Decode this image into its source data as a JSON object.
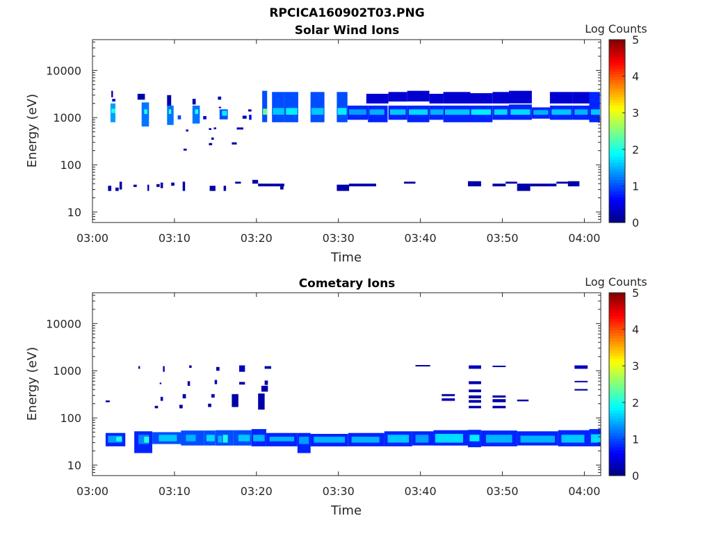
{
  "figure_title": "RPCICA160902T03.PNG",
  "colors": {
    "background": "#ffffff",
    "axis": "#262626",
    "colormap": "jet",
    "panel_low": "#000080",
    "panel_high": "#800000"
  },
  "chart_data": [
    {
      "type": "heatmap",
      "title": "Solar Wind Ions",
      "xlabel": "Time",
      "ylabel": "Energy (eV)",
      "x_ticks": [
        "03:00",
        "03:10",
        "03:20",
        "03:30",
        "03:40",
        "03:50",
        "04:00"
      ],
      "x_range_minutes": [
        0,
        62
      ],
      "y_scale": "log",
      "y_ticks": [
        "10",
        "100",
        "1000",
        "10000"
      ],
      "y_range": [
        6,
        45000
      ],
      "colorbar": {
        "label": "Log Counts",
        "range": [
          0,
          5
        ],
        "ticks": [
          "0",
          "1",
          "2",
          "3",
          "4",
          "5"
        ]
      },
      "cells": [
        [
          2.3,
          2.5,
          2700,
          3700,
          0.2
        ],
        [
          2.4,
          2.8,
          2200,
          2500,
          0.3
        ],
        [
          2.2,
          2.8,
          800,
          2000,
          1.4
        ],
        [
          2.3,
          2.8,
          1250,
          1550,
          2.0
        ],
        [
          5.5,
          6.4,
          2400,
          3200,
          0.2
        ],
        [
          6.0,
          6.9,
          650,
          2100,
          1.2
        ],
        [
          6.3,
          6.7,
          1200,
          1500,
          2.0
        ],
        [
          9.1,
          9.6,
          1700,
          3000,
          0.2
        ],
        [
          9.1,
          9.9,
          700,
          1800,
          1.2
        ],
        [
          9.3,
          9.6,
          1200,
          1500,
          2.2
        ],
        [
          10.4,
          10.8,
          920,
          1120,
          1.0
        ],
        [
          11.4,
          11.7,
          510,
          560,
          0.2
        ],
        [
          11.1,
          11.5,
          200,
          220,
          0.2
        ],
        [
          12.2,
          12.6,
          1900,
          2500,
          0.2
        ],
        [
          12.2,
          13.1,
          750,
          1800,
          1.2
        ],
        [
          12.5,
          12.9,
          1200,
          1500,
          2.0
        ],
        [
          13.5,
          13.9,
          920,
          1080,
          0.4
        ],
        [
          14.2,
          14.5,
          550,
          600,
          0.2
        ],
        [
          14.5,
          14.8,
          340,
          380,
          0.2
        ],
        [
          14.2,
          14.6,
          260,
          290,
          0.2
        ],
        [
          14.8,
          15.1,
          570,
          620,
          0.2
        ],
        [
          15.3,
          15.7,
          2400,
          2800,
          0.2
        ],
        [
          15.4,
          15.7,
          1600,
          1700,
          0.2
        ],
        [
          15.5,
          16.5,
          920,
          1500,
          1.0
        ],
        [
          15.8,
          16.4,
          1100,
          1400,
          1.8
        ],
        [
          17.0,
          17.6,
          270,
          300,
          0.2
        ],
        [
          17.6,
          18.4,
          560,
          620,
          0.2
        ],
        [
          18.3,
          18.8,
          950,
          1100,
          0.2
        ],
        [
          19.0,
          19.4,
          1350,
          1500,
          0.2
        ],
        [
          19.1,
          19.4,
          900,
          1150,
          0.6
        ],
        [
          20.7,
          21.3,
          800,
          3700,
          1.0
        ],
        [
          20.8,
          21.3,
          1150,
          1550,
          2.4
        ],
        [
          21.9,
          23.4,
          800,
          3500,
          1.0
        ],
        [
          22.0,
          23.4,
          1150,
          1600,
          1.6
        ],
        [
          23.4,
          25.1,
          800,
          3500,
          1.0
        ],
        [
          23.6,
          25.0,
          1150,
          1600,
          1.8
        ],
        [
          26.6,
          28.3,
          800,
          3500,
          1.0
        ],
        [
          26.7,
          28.2,
          1150,
          1600,
          1.6
        ],
        [
          29.8,
          31.1,
          800,
          3500,
          1.0
        ],
        [
          29.9,
          31.0,
          1150,
          1600,
          1.8
        ],
        [
          31.1,
          33.6,
          900,
          1800,
          0.8
        ],
        [
          31.3,
          33.4,
          1150,
          1500,
          1.4
        ],
        [
          33.4,
          36.1,
          2000,
          3200,
          0.4
        ],
        [
          33.6,
          36.0,
          800,
          1800,
          0.8
        ],
        [
          33.8,
          35.6,
          1150,
          1500,
          1.5
        ],
        [
          36.1,
          38.4,
          2200,
          3500,
          0.4
        ],
        [
          36.1,
          38.4,
          900,
          1800,
          0.8
        ],
        [
          36.3,
          38.2,
          1150,
          1500,
          1.6
        ],
        [
          38.4,
          41.1,
          2200,
          3700,
          0.4
        ],
        [
          38.4,
          41.1,
          800,
          1800,
          0.8
        ],
        [
          38.6,
          40.9,
          1150,
          1500,
          1.7
        ],
        [
          41.1,
          42.8,
          2000,
          3200,
          0.4
        ],
        [
          41.1,
          42.8,
          900,
          1800,
          0.8
        ],
        [
          41.2,
          42.8,
          1150,
          1500,
          1.5
        ],
        [
          42.8,
          46.1,
          2000,
          3500,
          0.4
        ],
        [
          42.8,
          46.1,
          800,
          1800,
          0.8
        ],
        [
          43.0,
          46.0,
          1150,
          1500,
          1.6
        ],
        [
          46.1,
          48.8,
          2000,
          3300,
          0.4
        ],
        [
          46.1,
          48.8,
          800,
          1800,
          0.8
        ],
        [
          46.2,
          48.6,
          1150,
          1500,
          1.8
        ],
        [
          48.8,
          50.8,
          2000,
          3500,
          0.4
        ],
        [
          48.8,
          50.8,
          900,
          1800,
          0.8
        ],
        [
          49.0,
          50.6,
          1150,
          1500,
          1.7
        ],
        [
          50.8,
          53.6,
          2000,
          3700,
          0.4
        ],
        [
          50.8,
          53.6,
          900,
          1900,
          0.8
        ],
        [
          51.0,
          53.4,
          1150,
          1500,
          1.7
        ],
        [
          53.6,
          55.8,
          950,
          1650,
          0.8
        ],
        [
          53.8,
          55.6,
          1150,
          1450,
          1.5
        ],
        [
          55.8,
          58.6,
          2000,
          3500,
          0.4
        ],
        [
          55.8,
          58.6,
          900,
          1800,
          0.8
        ],
        [
          56.0,
          58.4,
          1150,
          1500,
          1.6
        ],
        [
          58.6,
          60.6,
          2000,
          3500,
          0.4
        ],
        [
          58.6,
          60.6,
          900,
          1800,
          0.8
        ],
        [
          58.8,
          60.4,
          1150,
          1500,
          1.5
        ],
        [
          60.6,
          61.9,
          800,
          3500,
          0.8
        ],
        [
          60.8,
          61.9,
          1150,
          1500,
          1.6
        ],
        [
          1.9,
          2.3,
          28,
          36,
          0.2
        ],
        [
          2.8,
          3.2,
          28,
          33,
          0.2
        ],
        [
          3.3,
          3.6,
          30,
          44,
          0.2
        ],
        [
          5.0,
          5.4,
          34,
          38,
          0.2
        ],
        [
          6.7,
          6.9,
          28,
          38,
          0.2
        ],
        [
          7.8,
          8.2,
          34,
          39,
          0.2
        ],
        [
          8.3,
          8.6,
          32,
          42,
          0.2
        ],
        [
          9.6,
          10.0,
          36,
          42,
          0.2
        ],
        [
          11.0,
          11.3,
          28,
          44,
          0.2
        ],
        [
          14.3,
          15.0,
          28,
          36,
          0.2
        ],
        [
          16.0,
          16.3,
          28,
          36,
          0.2
        ],
        [
          17.4,
          18.1,
          40,
          44,
          0.2
        ],
        [
          19.5,
          20.2,
          40,
          48,
          0.2
        ],
        [
          20.2,
          23.4,
          35,
          40,
          0.2
        ],
        [
          22.9,
          23.3,
          30,
          36,
          0.2
        ],
        [
          29.8,
          31.3,
          28,
          38,
          0.2
        ],
        [
          31.3,
          34.6,
          35,
          40,
          0.2
        ],
        [
          38.0,
          39.4,
          40,
          44,
          0.2
        ],
        [
          45.8,
          47.4,
          35,
          45,
          0.2
        ],
        [
          48.8,
          50.4,
          35,
          40,
          0.2
        ],
        [
          50.4,
          51.8,
          40,
          44,
          0.2
        ],
        [
          51.8,
          53.4,
          28,
          40,
          0.2
        ],
        [
          53.4,
          56.6,
          35,
          40,
          0.2
        ],
        [
          56.6,
          58.0,
          40,
          44,
          0.2
        ],
        [
          58.0,
          59.4,
          35,
          45,
          0.2
        ]
      ]
    },
    {
      "type": "heatmap",
      "title": "Cometary Ions",
      "xlabel": "Time",
      "ylabel": "Energy (eV)",
      "x_ticks": [
        "03:00",
        "03:10",
        "03:20",
        "03:30",
        "03:40",
        "03:50",
        "04:00"
      ],
      "x_range_minutes": [
        0,
        62
      ],
      "y_scale": "log",
      "y_ticks": [
        "10",
        "100",
        "1000",
        "10000"
      ],
      "y_range": [
        6,
        45000
      ],
      "colorbar": {
        "label": "Log Counts",
        "range": [
          0,
          5
        ],
        "ticks": [
          "0",
          "1",
          "2",
          "3",
          "4",
          "5"
        ]
      },
      "cells": [
        [
          1.6,
          4.0,
          25,
          48,
          0.8
        ],
        [
          1.9,
          3.6,
          30,
          42,
          1.4
        ],
        [
          2.9,
          3.6,
          32,
          40,
          2.0
        ],
        [
          1.6,
          2.1,
          215,
          235,
          0.2
        ],
        [
          5.1,
          7.3,
          18,
          52,
          0.8
        ],
        [
          5.6,
          6.9,
          28,
          44,
          1.3
        ],
        [
          6.3,
          6.9,
          30,
          40,
          2.1
        ],
        [
          5.6,
          5.8,
          1100,
          1250,
          0.2
        ],
        [
          7.3,
          10.8,
          28,
          50,
          1.0
        ],
        [
          8.1,
          10.3,
          32,
          44,
          1.6
        ],
        [
          8.2,
          8.4,
          520,
          560,
          0.2
        ],
        [
          7.6,
          8.0,
          160,
          180,
          0.2
        ],
        [
          8.3,
          8.6,
          230,
          280,
          0.2
        ],
        [
          8.6,
          8.8,
          950,
          1250,
          0.2
        ],
        [
          10.8,
          13.6,
          26,
          54,
          1.0
        ],
        [
          11.4,
          12.6,
          32,
          44,
          1.5
        ],
        [
          10.6,
          11.0,
          160,
          190,
          0.2
        ],
        [
          11.0,
          11.4,
          260,
          320,
          0.2
        ],
        [
          11.6,
          11.9,
          480,
          600,
          0.2
        ],
        [
          11.8,
          12.1,
          1150,
          1300,
          0.2
        ],
        [
          13.6,
          15.0,
          26,
          54,
          1.0
        ],
        [
          13.9,
          14.9,
          32,
          44,
          1.7
        ],
        [
          14.1,
          14.5,
          170,
          200,
          0.2
        ],
        [
          14.5,
          14.9,
          270,
          320,
          0.2
        ],
        [
          14.9,
          15.2,
          520,
          640,
          0.2
        ],
        [
          15.1,
          15.5,
          1000,
          1200,
          0.2
        ],
        [
          15.0,
          17.2,
          26,
          55,
          1.0
        ],
        [
          15.9,
          16.5,
          30,
          44,
          2.0
        ],
        [
          15.3,
          15.8,
          30,
          42,
          1.5
        ],
        [
          17.0,
          17.8,
          170,
          320,
          0.2
        ],
        [
          17.9,
          18.6,
          950,
          1300,
          0.3
        ],
        [
          17.9,
          18.6,
          510,
          580,
          0.2
        ],
        [
          17.2,
          19.4,
          26,
          55,
          1.0
        ],
        [
          17.8,
          19.2,
          32,
          44,
          1.6
        ],
        [
          19.4,
          21.2,
          25,
          58,
          0.8
        ],
        [
          19.6,
          21.0,
          32,
          44,
          1.5
        ],
        [
          20.2,
          21.0,
          150,
          330,
          0.2
        ],
        [
          20.6,
          21.4,
          360,
          480,
          0.2
        ],
        [
          21.0,
          21.4,
          500,
          620,
          0.2
        ],
        [
          21.0,
          21.8,
          1100,
          1250,
          0.2
        ],
        [
          21.2,
          25.0,
          25,
          48,
          0.8
        ],
        [
          21.6,
          24.6,
          32,
          40,
          1.5
        ],
        [
          25.0,
          26.6,
          18,
          48,
          0.8
        ],
        [
          25.2,
          26.4,
          28,
          40,
          1.4
        ],
        [
          26.6,
          31.2,
          25,
          46,
          0.8
        ],
        [
          27.0,
          30.8,
          30,
          40,
          1.5
        ],
        [
          31.2,
          35.6,
          25,
          48,
          0.8
        ],
        [
          31.6,
          35.0,
          30,
          40,
          1.5
        ],
        [
          35.6,
          39.0,
          25,
          52,
          0.8
        ],
        [
          36.0,
          38.6,
          30,
          44,
          1.6
        ],
        [
          39.0,
          41.6,
          26,
          52,
          0.8
        ],
        [
          39.4,
          41.0,
          30,
          44,
          1.4
        ],
        [
          39.4,
          41.2,
          1250,
          1320,
          0.2
        ],
        [
          41.6,
          45.8,
          26,
          55,
          0.8
        ],
        [
          41.8,
          45.2,
          30,
          46,
          1.7
        ],
        [
          42.6,
          44.2,
          290,
          320,
          0.2
        ],
        [
          42.6,
          44.2,
          230,
          260,
          0.2
        ],
        [
          45.8,
          47.4,
          24,
          56,
          0.8
        ],
        [
          46.0,
          47.2,
          32,
          44,
          1.8
        ],
        [
          45.9,
          47.4,
          1100,
          1300,
          0.3
        ],
        [
          45.9,
          47.4,
          520,
          600,
          0.2
        ],
        [
          45.9,
          47.4,
          350,
          400,
          0.2
        ],
        [
          45.9,
          47.4,
          260,
          300,
          0.2
        ],
        [
          45.9,
          47.4,
          210,
          240,
          0.2
        ],
        [
          45.9,
          47.4,
          160,
          180,
          0.2
        ],
        [
          47.4,
          51.8,
          25,
          54,
          0.8
        ],
        [
          48.0,
          51.2,
          30,
          44,
          1.5
        ],
        [
          48.8,
          50.4,
          1200,
          1280,
          0.2
        ],
        [
          48.8,
          50.4,
          270,
          300,
          0.2
        ],
        [
          48.8,
          50.4,
          215,
          250,
          0.2
        ],
        [
          48.8,
          50.4,
          160,
          180,
          0.2
        ],
        [
          51.8,
          53.2,
          225,
          245,
          0.2
        ],
        [
          51.8,
          56.8,
          26,
          52,
          0.8
        ],
        [
          52.2,
          56.4,
          30,
          42,
          1.5
        ],
        [
          56.8,
          60.6,
          25,
          55,
          0.8
        ],
        [
          57.2,
          60.0,
          30,
          44,
          1.6
        ],
        [
          58.8,
          60.4,
          1100,
          1300,
          0.3
        ],
        [
          58.8,
          60.4,
          570,
          610,
          0.2
        ],
        [
          58.8,
          60.4,
          380,
          410,
          0.2
        ],
        [
          60.6,
          62.0,
          25,
          58,
          0.8
        ],
        [
          60.8,
          62.0,
          30,
          45,
          1.7
        ]
      ]
    }
  ]
}
